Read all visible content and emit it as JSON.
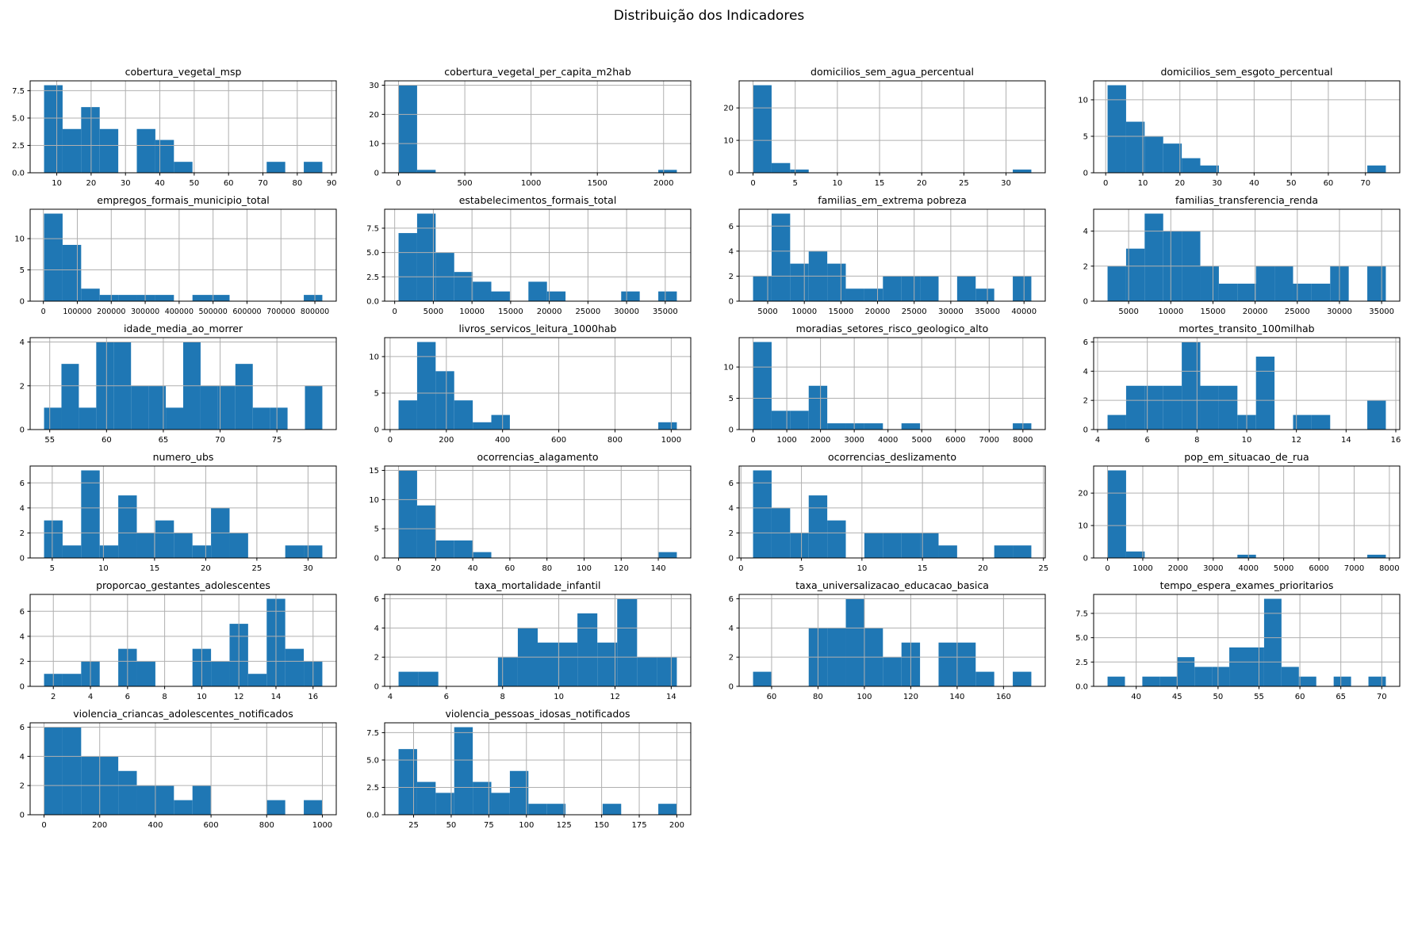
{
  "figure": {
    "title": "Distribuição dos Indicadores"
  },
  "style": {
    "bar_color": "#1f77b4",
    "grid_color": "#b0b0b0",
    "spine_color": "#000000",
    "tick_color": "#000000"
  },
  "chart_data": [
    {
      "type": "histogram",
      "title": "cobertura_vegetal_msp",
      "bin_start": 6.3,
      "bin_end": 87.3,
      "counts": [
        8,
        4,
        6,
        4,
        0,
        4,
        3,
        1,
        0,
        0,
        0,
        0,
        1,
        0,
        1
      ],
      "xticks": [
        10,
        20,
        30,
        40,
        50,
        60,
        70,
        80,
        90
      ],
      "xtick_labels": [
        "10",
        "20",
        "30",
        "40",
        "50",
        "60",
        "70",
        "80",
        "90"
      ],
      "yticks": [
        0,
        2.5,
        5,
        7.5
      ],
      "ytick_labels": [
        "0.0",
        "2.5",
        "5.0",
        "7.5"
      ],
      "ymax": 8.4
    },
    {
      "type": "histogram",
      "title": "cobertura_vegetal_per_capita_m2hab",
      "bin_start": 0,
      "bin_end": 2100,
      "counts": [
        30,
        1,
        0,
        0,
        0,
        0,
        0,
        0,
        0,
        0,
        0,
        0,
        0,
        0,
        1
      ],
      "xticks": [
        0,
        500,
        1000,
        1500,
        2000
      ],
      "xtick_labels": [
        "0",
        "500",
        "1000",
        "1500",
        "2000"
      ],
      "yticks": [
        0,
        10,
        20,
        30
      ],
      "ytick_labels": [
        "0",
        "10",
        "20",
        "30"
      ],
      "ymax": 31.5
    },
    {
      "type": "histogram",
      "title": "domicilios_sem_agua_percentual",
      "bin_start": 0,
      "bin_end": 33,
      "counts": [
        27,
        3,
        1,
        0,
        0,
        0,
        0,
        0,
        0,
        0,
        0,
        0,
        0,
        0,
        1
      ],
      "xticks": [
        0,
        5,
        10,
        15,
        20,
        25,
        30
      ],
      "xtick_labels": [
        "0",
        "5",
        "10",
        "15",
        "20",
        "25",
        "30"
      ],
      "yticks": [
        0,
        10,
        20
      ],
      "ytick_labels": [
        "0",
        "10",
        "20"
      ],
      "ymax": 28.35
    },
    {
      "type": "histogram",
      "title": "domicilios_sem_esgoto_percentual",
      "bin_start": 0.5,
      "bin_end": 75.5,
      "counts": [
        12,
        7,
        5,
        4,
        2,
        1,
        0,
        0,
        0,
        0,
        0,
        0,
        0,
        0,
        1
      ],
      "xticks": [
        0,
        10,
        20,
        30,
        40,
        50,
        60,
        70
      ],
      "xtick_labels": [
        "0",
        "10",
        "20",
        "30",
        "40",
        "50",
        "60",
        "70"
      ],
      "yticks": [
        0,
        5,
        10
      ],
      "ytick_labels": [
        "0",
        "5",
        "10"
      ],
      "ymax": 12.6
    },
    {
      "type": "histogram",
      "title": "empregos_formais_municipio_total",
      "bin_start": 2000,
      "bin_end": 822000,
      "counts": [
        14,
        9,
        2,
        1,
        1,
        1,
        1,
        0,
        1,
        1,
        0,
        0,
        0,
        0,
        1
      ],
      "xticks": [
        0,
        100000,
        200000,
        300000,
        400000,
        500000,
        600000,
        700000,
        800000
      ],
      "xtick_labels": [
        "0",
        "100000",
        "200000",
        "300000",
        "400000",
        "500000",
        "600000",
        "700000",
        "800000"
      ],
      "yticks": [
        0,
        5,
        10
      ],
      "ytick_labels": [
        "0",
        "5",
        "10"
      ],
      "ymax": 14.7,
      "dense_x": true
    },
    {
      "type": "histogram",
      "title": "estabelecimentos_formais_total",
      "bin_start": 500,
      "bin_end": 36500,
      "counts": [
        7,
        9,
        5,
        3,
        2,
        1,
        0,
        2,
        1,
        0,
        0,
        0,
        1,
        0,
        1
      ],
      "xticks": [
        0,
        5000,
        10000,
        15000,
        20000,
        25000,
        30000,
        35000
      ],
      "xtick_labels": [
        "0",
        "5000",
        "10000",
        "15000",
        "20000",
        "25000",
        "30000",
        "35000"
      ],
      "yticks": [
        0,
        2.5,
        5,
        7.5
      ],
      "ytick_labels": [
        "0.0",
        "2.5",
        "5.0",
        "7.5"
      ],
      "ymax": 9.45
    },
    {
      "type": "histogram",
      "title": "familias_em_extrema pobreza",
      "bin_start": 3000,
      "bin_end": 41000,
      "counts": [
        2,
        7,
        3,
        4,
        3,
        1,
        1,
        2,
        2,
        2,
        0,
        2,
        1,
        0,
        2
      ],
      "xticks": [
        5000,
        10000,
        15000,
        20000,
        25000,
        30000,
        35000,
        40000
      ],
      "xtick_labels": [
        "5000",
        "10000",
        "15000",
        "20000",
        "25000",
        "30000",
        "35000",
        "40000"
      ],
      "yticks": [
        0,
        2,
        4,
        6
      ],
      "ytick_labels": [
        "0",
        "2",
        "4",
        "6"
      ],
      "ymax": 7.35
    },
    {
      "type": "histogram",
      "title": "familias_transferencia_renda",
      "bin_start": 2500,
      "bin_end": 35500,
      "counts": [
        2,
        3,
        5,
        4,
        4,
        2,
        1,
        1,
        2,
        2,
        1,
        1,
        2,
        0,
        2
      ],
      "xticks": [
        5000,
        10000,
        15000,
        20000,
        25000,
        30000,
        35000
      ],
      "xtick_labels": [
        "5000",
        "10000",
        "15000",
        "20000",
        "25000",
        "30000",
        "35000"
      ],
      "yticks": [
        0,
        2,
        4
      ],
      "ytick_labels": [
        "0",
        "2",
        "4"
      ],
      "ymax": 5.25
    },
    {
      "type": "histogram",
      "title": "idade_media_ao_morrer",
      "bin_start": 54.5,
      "bin_end": 79,
      "counts": [
        1,
        3,
        1,
        4,
        4,
        2,
        2,
        1,
        4,
        2,
        2,
        3,
        1,
        1,
        0,
        2
      ],
      "xticks": [
        55,
        60,
        65,
        70,
        75
      ],
      "xtick_labels": [
        "55",
        "60",
        "65",
        "70",
        "75"
      ],
      "yticks": [
        0,
        2,
        4
      ],
      "ytick_labels": [
        "0",
        "2",
        "4"
      ],
      "ymax": 4.2
    },
    {
      "type": "histogram",
      "title": "livros_servicos_leitura_1000hab",
      "bin_start": 30,
      "bin_end": 1020,
      "counts": [
        4,
        12,
        8,
        4,
        1,
        2,
        0,
        0,
        0,
        0,
        0,
        0,
        0,
        0,
        1
      ],
      "xticks": [
        0,
        200,
        400,
        600,
        800,
        1000
      ],
      "xtick_labels": [
        "0",
        "200",
        "400",
        "600",
        "800",
        "1000"
      ],
      "yticks": [
        0,
        5,
        10
      ],
      "ytick_labels": [
        "0",
        "5",
        "10"
      ],
      "ymax": 12.6
    },
    {
      "type": "histogram",
      "title": "moradias_setores_risco_geologico_alto",
      "bin_start": 0,
      "bin_end": 8250,
      "counts": [
        14,
        3,
        3,
        7,
        1,
        1,
        1,
        0,
        1,
        0,
        0,
        0,
        0,
        0,
        1
      ],
      "xticks": [
        0,
        1000,
        2000,
        3000,
        4000,
        5000,
        6000,
        7000,
        8000
      ],
      "xtick_labels": [
        "0",
        "1000",
        "2000",
        "3000",
        "4000",
        "5000",
        "6000",
        "7000",
        "8000"
      ],
      "yticks": [
        0,
        5,
        10
      ],
      "ytick_labels": [
        "0",
        "5",
        "10"
      ],
      "ymax": 14.7
    },
    {
      "type": "histogram",
      "title": "mortes_transito_100milhab",
      "bin_start": 4.4,
      "bin_end": 15.6,
      "counts": [
        1,
        3,
        3,
        3,
        6,
        3,
        3,
        1,
        5,
        0,
        1,
        1,
        0,
        0,
        2
      ],
      "xticks": [
        4,
        6,
        8,
        10,
        12,
        14,
        16
      ],
      "xtick_labels": [
        "4",
        "6",
        "8",
        "10",
        "12",
        "14",
        "16"
      ],
      "yticks": [
        0,
        2,
        4,
        6
      ],
      "ytick_labels": [
        "0",
        "2",
        "4",
        "6"
      ],
      "ymax": 6.3
    },
    {
      "type": "histogram",
      "title": "numero_ubs",
      "bin_start": 4.2,
      "bin_end": 31.4,
      "counts": [
        3,
        1,
        7,
        1,
        5,
        2,
        3,
        2,
        1,
        4,
        2,
        0,
        0,
        1,
        1
      ],
      "xticks": [
        5,
        10,
        15,
        20,
        25,
        30
      ],
      "xtick_labels": [
        "5",
        "10",
        "15",
        "20",
        "25",
        "30"
      ],
      "yticks": [
        0,
        2,
        4,
        6
      ],
      "ytick_labels": [
        "0",
        "2",
        "4",
        "6"
      ],
      "ymax": 7.35
    },
    {
      "type": "histogram",
      "title": "ocorrencias_alagamento",
      "bin_start": 0,
      "bin_end": 150,
      "counts": [
        15,
        9,
        3,
        3,
        1,
        0,
        0,
        0,
        0,
        0,
        0,
        0,
        0,
        0,
        1
      ],
      "xticks": [
        0,
        20,
        40,
        60,
        80,
        100,
        120,
        140
      ],
      "xtick_labels": [
        "0",
        "20",
        "40",
        "60",
        "80",
        "100",
        "120",
        "140"
      ],
      "yticks": [
        0,
        5,
        10,
        15
      ],
      "ytick_labels": [
        "0",
        "5",
        "10",
        "15"
      ],
      "ymax": 15.75
    },
    {
      "type": "histogram",
      "title": "ocorrencias_deslizamento",
      "bin_start": 1,
      "bin_end": 24,
      "counts": [
        7,
        4,
        2,
        5,
        3,
        0,
        2,
        2,
        2,
        2,
        1,
        0,
        0,
        1,
        1
      ],
      "xticks": [
        0,
        5,
        10,
        15,
        20,
        25
      ],
      "xtick_labels": [
        "0",
        "5",
        "10",
        "15",
        "20",
        "25"
      ],
      "yticks": [
        0,
        2,
        4,
        6
      ],
      "ytick_labels": [
        "0",
        "2",
        "4",
        "6"
      ],
      "ymax": 7.35
    },
    {
      "type": "histogram",
      "title": "pop_em_situacao_de_rua",
      "bin_start": 0,
      "bin_end": 7900,
      "counts": [
        27,
        2,
        0,
        0,
        0,
        0,
        0,
        1,
        0,
        0,
        0,
        0,
        0,
        0,
        1
      ],
      "xticks": [
        0,
        1000,
        2000,
        3000,
        4000,
        5000,
        6000,
        7000,
        8000
      ],
      "xtick_labels": [
        "0",
        "1000",
        "2000",
        "3000",
        "4000",
        "5000",
        "6000",
        "7000",
        "8000"
      ],
      "yticks": [
        0,
        10,
        20
      ],
      "ytick_labels": [
        "0",
        "10",
        "20"
      ],
      "ymax": 28.35
    },
    {
      "type": "histogram",
      "title": "proporcao_gestantes_adolescentes",
      "bin_start": 1.5,
      "bin_end": 16.5,
      "counts": [
        1,
        1,
        2,
        0,
        3,
        2,
        0,
        0,
        3,
        2,
        5,
        1,
        7,
        3,
        2
      ],
      "xticks": [
        2,
        4,
        6,
        8,
        10,
        12,
        14,
        16
      ],
      "xtick_labels": [
        "2",
        "4",
        "6",
        "8",
        "10",
        "12",
        "14",
        "16"
      ],
      "yticks": [
        0,
        2,
        4,
        6
      ],
      "ytick_labels": [
        "0",
        "2",
        "4",
        "6"
      ],
      "ymax": 7.35
    },
    {
      "type": "histogram",
      "title": "taxa_mortalidade_infantil",
      "bin_start": 4.3,
      "bin_end": 14.2,
      "counts": [
        1,
        1,
        0,
        0,
        0,
        2,
        4,
        3,
        3,
        5,
        3,
        6,
        2,
        2
      ],
      "xticks": [
        4,
        6,
        8,
        10,
        12,
        14
      ],
      "xtick_labels": [
        "4",
        "6",
        "8",
        "10",
        "12",
        "14"
      ],
      "yticks": [
        0,
        2,
        4,
        6
      ],
      "ytick_labels": [
        "0",
        "2",
        "4",
        "6"
      ],
      "ymax": 6.3
    },
    {
      "type": "histogram",
      "title": "taxa_universalizacao_educacao_basica",
      "bin_start": 52,
      "bin_end": 172,
      "counts": [
        1,
        0,
        0,
        4,
        4,
        6,
        4,
        2,
        3,
        0,
        3,
        3,
        1,
        0,
        1
      ],
      "xticks": [
        60,
        80,
        100,
        120,
        140,
        160
      ],
      "xtick_labels": [
        "60",
        "80",
        "100",
        "120",
        "140",
        "160"
      ],
      "yticks": [
        0,
        2,
        4,
        6
      ],
      "ytick_labels": [
        "0",
        "2",
        "4",
        "6"
      ],
      "ymax": 6.3
    },
    {
      "type": "histogram",
      "title": "tempo_espera_exames_prioritarios",
      "bin_start": 36.5,
      "bin_end": 70.5,
      "counts": [
        1,
        0,
        1,
        1,
        3,
        2,
        2,
        4,
        4,
        9,
        2,
        1,
        0,
        1,
        0,
        1
      ],
      "xticks": [
        40,
        45,
        50,
        55,
        60,
        65,
        70
      ],
      "xtick_labels": [
        "40",
        "45",
        "50",
        "55",
        "60",
        "65",
        "70"
      ],
      "yticks": [
        0,
        2.5,
        5,
        7.5
      ],
      "ytick_labels": [
        "0.0",
        "2.5",
        "5.0",
        "7.5"
      ],
      "ymax": 9.45
    },
    {
      "type": "histogram",
      "title": "violencia_criancas_adolescentes_notificados",
      "bin_start": 0,
      "bin_end": 1000,
      "counts": [
        6,
        6,
        4,
        4,
        3,
        2,
        2,
        1,
        2,
        0,
        0,
        0,
        1,
        0,
        1
      ],
      "xticks": [
        0,
        200,
        400,
        600,
        800,
        1000
      ],
      "xtick_labels": [
        "0",
        "200",
        "400",
        "600",
        "800",
        "1000"
      ],
      "yticks": [
        0,
        2,
        4,
        6
      ],
      "ytick_labels": [
        "0",
        "2",
        "4",
        "6"
      ],
      "ymax": 6.3
    },
    {
      "type": "histogram",
      "title": "violencia_pessoas_idosas_notificados",
      "bin_start": 15,
      "bin_end": 200,
      "counts": [
        6,
        3,
        2,
        8,
        3,
        2,
        4,
        1,
        1,
        0,
        0,
        1,
        0,
        0,
        1
      ],
      "xticks": [
        25,
        50,
        75,
        100,
        125,
        150,
        175,
        200
      ],
      "xtick_labels": [
        "25",
        "50",
        "75",
        "100",
        "125",
        "150",
        "175",
        "200"
      ],
      "yticks": [
        0,
        2.5,
        5,
        7.5
      ],
      "ytick_labels": [
        "0.0",
        "2.5",
        "5.0",
        "7.5"
      ],
      "ymax": 8.4
    }
  ]
}
